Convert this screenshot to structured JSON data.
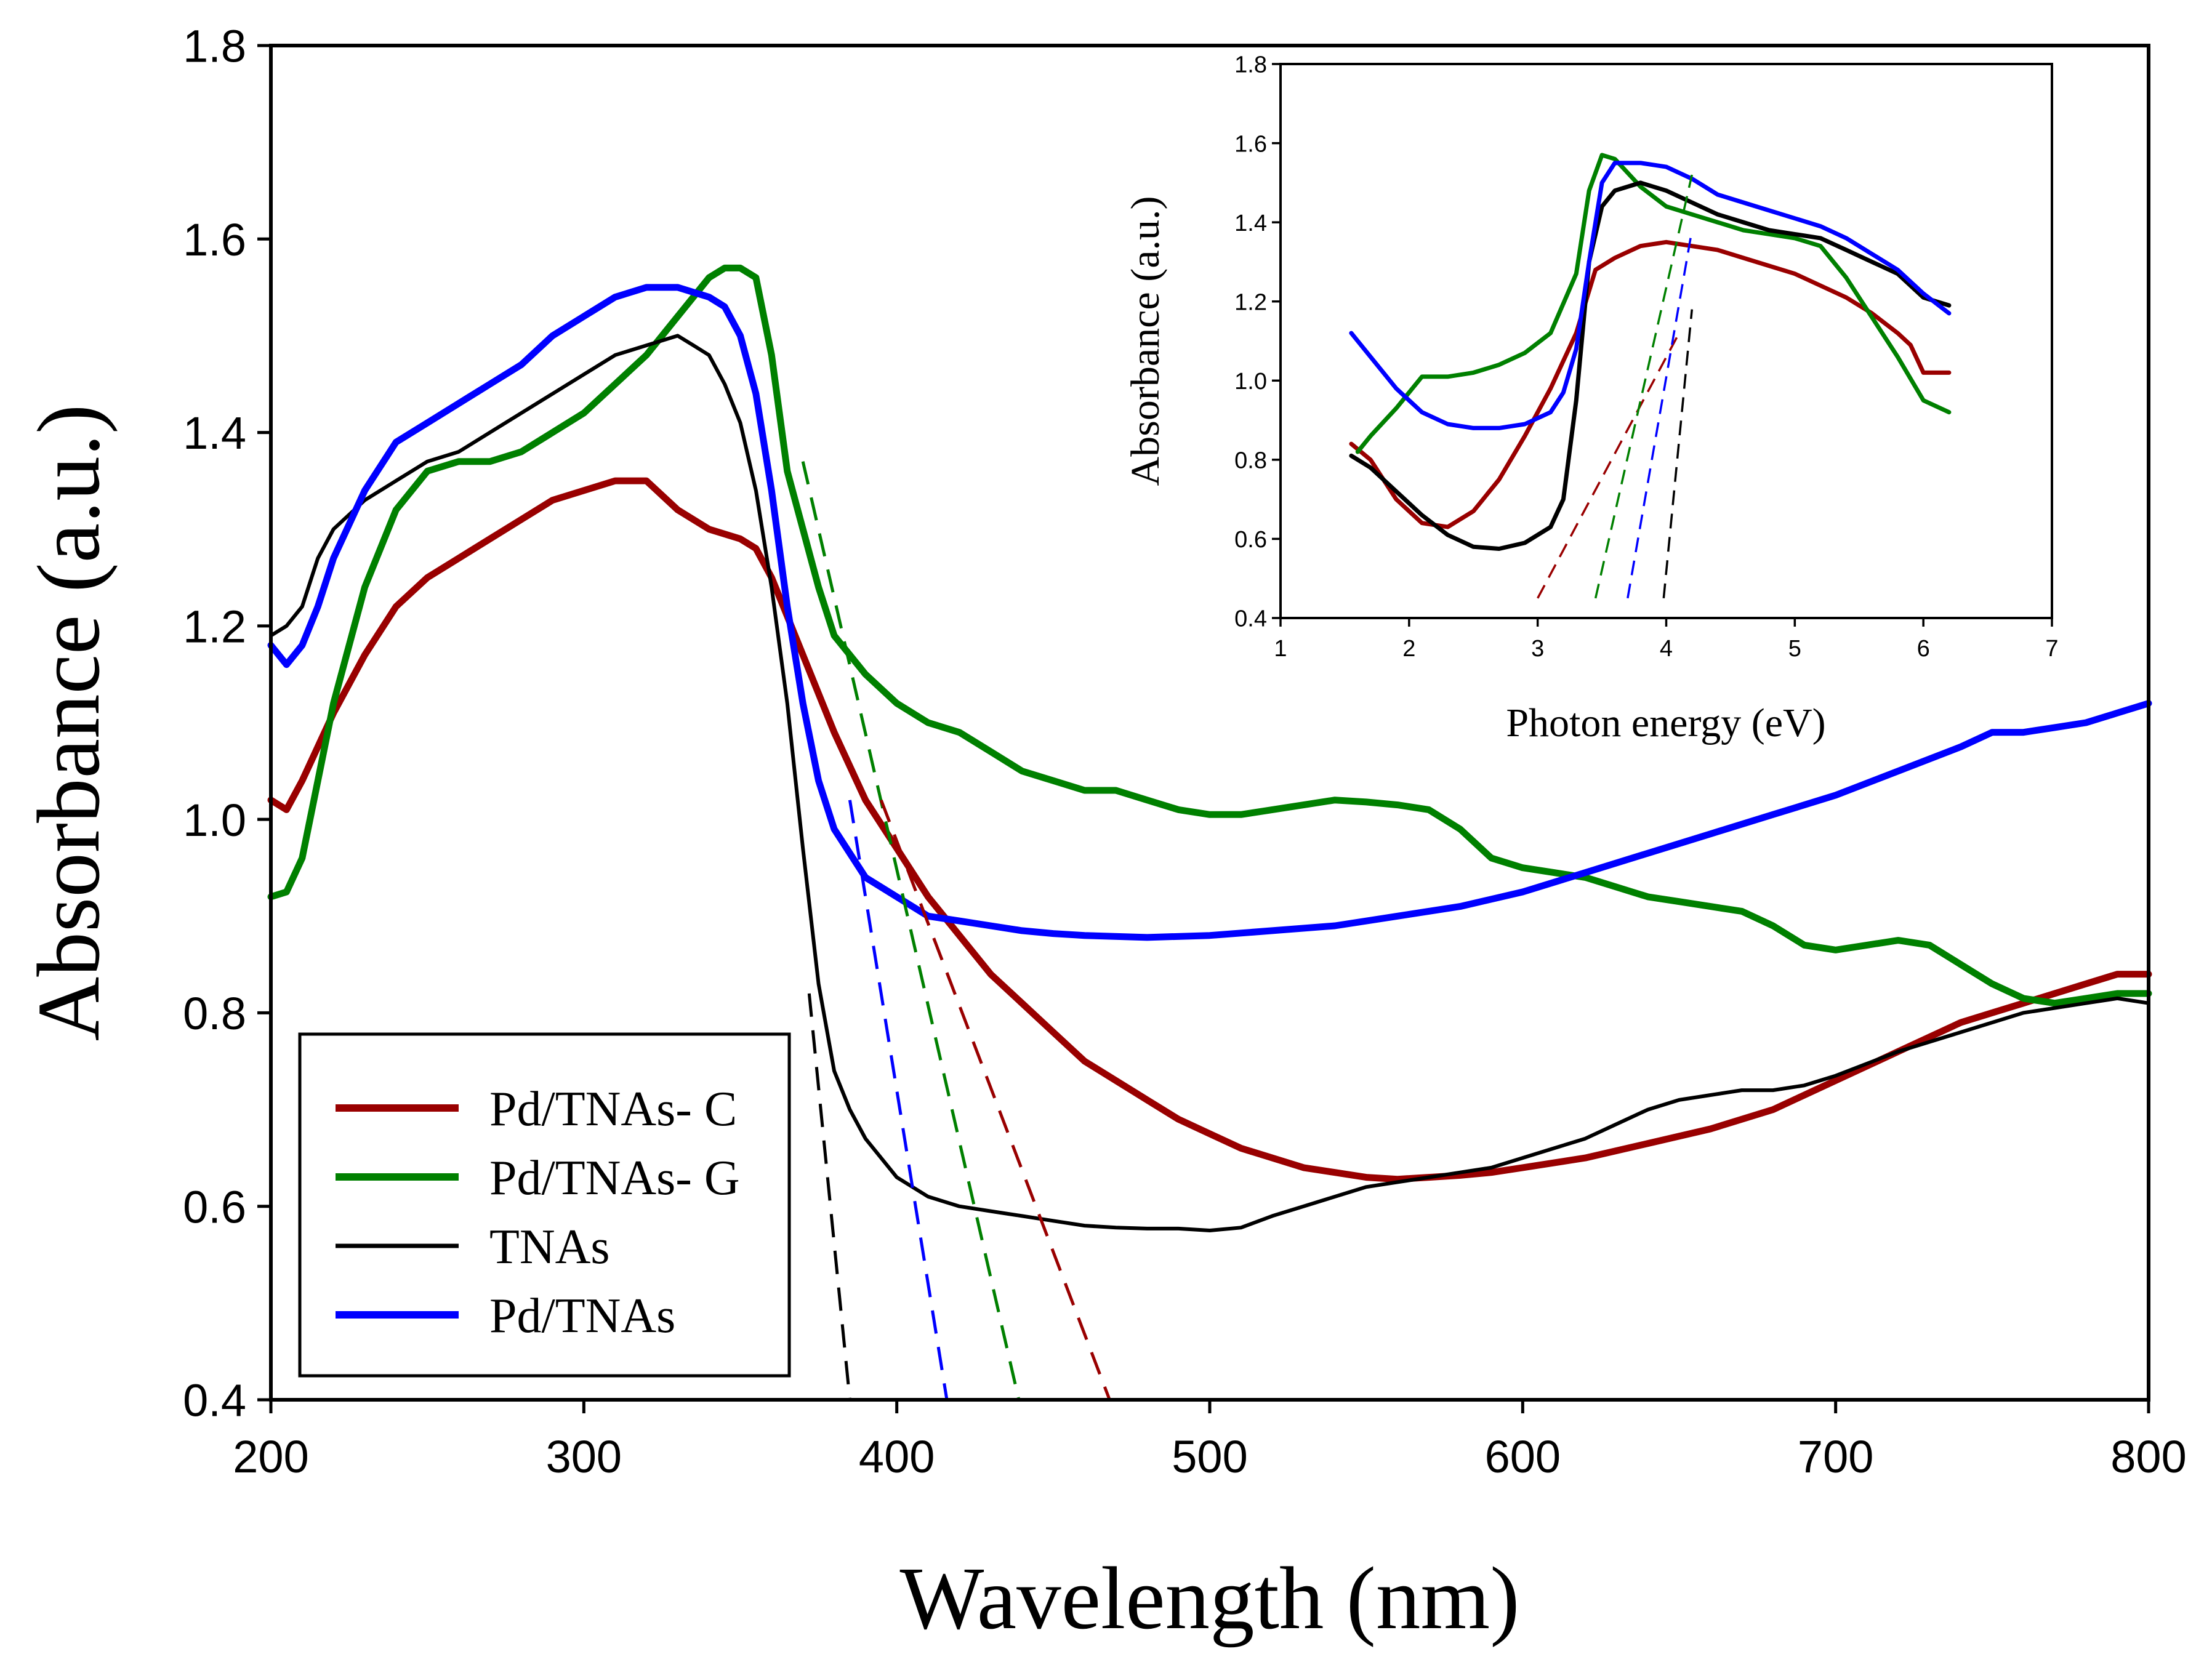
{
  "chart_data": [
    {
      "type": "line",
      "title": "",
      "xlabel": "Wavelength (nm)",
      "ylabel": "Absorbance (a.u.)",
      "xlim": [
        200,
        800
      ],
      "ylim": [
        0.4,
        1.8
      ],
      "xticks": [
        "200",
        "300",
        "400",
        "500",
        "600",
        "700",
        "800"
      ],
      "yticks": [
        "0.4",
        "0.6",
        "0.8",
        "1.0",
        "1.2",
        "1.4",
        "1.6",
        "1.8"
      ],
      "legend_position": "bottom-left",
      "series": [
        {
          "name": "Pd/TNAs- C",
          "color": "#990000",
          "x": [
            200,
            205,
            210,
            220,
            230,
            240,
            250,
            260,
            270,
            280,
            290,
            300,
            310,
            320,
            330,
            340,
            350,
            355,
            360,
            365,
            370,
            380,
            390,
            400,
            410,
            420,
            430,
            440,
            450,
            460,
            470,
            480,
            490,
            500,
            510,
            520,
            530,
            540,
            550,
            560,
            570,
            580,
            590,
            600,
            620,
            640,
            660,
            680,
            700,
            720,
            740,
            750,
            760,
            770,
            780,
            790,
            800
          ],
          "y": [
            1.02,
            1.01,
            1.04,
            1.11,
            1.17,
            1.22,
            1.25,
            1.27,
            1.29,
            1.31,
            1.33,
            1.34,
            1.35,
            1.35,
            1.32,
            1.3,
            1.29,
            1.28,
            1.25,
            1.21,
            1.17,
            1.09,
            1.02,
            0.97,
            0.92,
            0.88,
            0.84,
            0.81,
            0.78,
            0.75,
            0.73,
            0.71,
            0.69,
            0.675,
            0.66,
            0.65,
            0.64,
            0.635,
            0.63,
            0.628,
            0.63,
            0.632,
            0.635,
            0.64,
            0.65,
            0.665,
            0.68,
            0.7,
            0.73,
            0.76,
            0.79,
            0.8,
            0.81,
            0.82,
            0.83,
            0.84,
            0.84
          ]
        },
        {
          "name": "Pd/TNAs- G",
          "color": "#008000",
          "x": [
            200,
            205,
            210,
            215,
            220,
            230,
            240,
            250,
            260,
            270,
            280,
            290,
            300,
            310,
            320,
            330,
            340,
            345,
            350,
            355,
            360,
            365,
            370,
            375,
            380,
            390,
            400,
            410,
            420,
            430,
            440,
            450,
            460,
            470,
            480,
            490,
            500,
            510,
            520,
            530,
            540,
            550,
            560,
            570,
            580,
            590,
            600,
            610,
            620,
            630,
            640,
            650,
            660,
            670,
            680,
            690,
            700,
            710,
            720,
            730,
            740,
            750,
            760,
            770,
            780,
            790,
            800
          ],
          "y": [
            0.92,
            0.925,
            0.96,
            1.04,
            1.12,
            1.24,
            1.32,
            1.36,
            1.37,
            1.37,
            1.38,
            1.4,
            1.42,
            1.45,
            1.48,
            1.52,
            1.56,
            1.57,
            1.57,
            1.56,
            1.48,
            1.36,
            1.3,
            1.24,
            1.19,
            1.15,
            1.12,
            1.1,
            1.09,
            1.07,
            1.05,
            1.04,
            1.03,
            1.03,
            1.02,
            1.01,
            1.005,
            1.005,
            1.01,
            1.015,
            1.02,
            1.018,
            1.015,
            1.01,
            0.99,
            0.96,
            0.95,
            0.945,
            0.94,
            0.93,
            0.92,
            0.915,
            0.91,
            0.905,
            0.89,
            0.87,
            0.865,
            0.87,
            0.875,
            0.87,
            0.85,
            0.83,
            0.815,
            0.81,
            0.815,
            0.82,
            0.82
          ]
        },
        {
          "name": "TNAs",
          "color": "#000000",
          "x": [
            200,
            205,
            210,
            215,
            220,
            230,
            240,
            250,
            260,
            270,
            280,
            290,
            300,
            310,
            320,
            330,
            335,
            340,
            345,
            350,
            355,
            360,
            365,
            370,
            375,
            380,
            385,
            390,
            400,
            410,
            420,
            430,
            440,
            450,
            460,
            470,
            480,
            490,
            500,
            510,
            520,
            530,
            540,
            550,
            560,
            570,
            580,
            590,
            600,
            610,
            620,
            630,
            640,
            650,
            660,
            670,
            680,
            690,
            700,
            720,
            740,
            760,
            780,
            790,
            800
          ],
          "y": [
            1.19,
            1.2,
            1.22,
            1.27,
            1.3,
            1.33,
            1.35,
            1.37,
            1.38,
            1.4,
            1.42,
            1.44,
            1.46,
            1.48,
            1.49,
            1.5,
            1.49,
            1.48,
            1.45,
            1.41,
            1.34,
            1.24,
            1.12,
            0.97,
            0.83,
            0.74,
            0.7,
            0.67,
            0.63,
            0.61,
            0.6,
            0.595,
            0.59,
            0.585,
            0.58,
            0.578,
            0.577,
            0.577,
            0.575,
            0.578,
            0.59,
            0.6,
            0.61,
            0.62,
            0.625,
            0.63,
            0.635,
            0.64,
            0.65,
            0.66,
            0.67,
            0.685,
            0.7,
            0.71,
            0.715,
            0.72,
            0.72,
            0.725,
            0.735,
            0.76,
            0.78,
            0.8,
            0.81,
            0.815,
            0.81
          ]
        },
        {
          "name": "Pd/TNAs",
          "color": "#0000ff",
          "x": [
            200,
            205,
            210,
            215,
            220,
            230,
            240,
            250,
            260,
            270,
            280,
            290,
            300,
            310,
            320,
            330,
            340,
            345,
            350,
            355,
            360,
            365,
            370,
            375,
            380,
            390,
            400,
            410,
            420,
            430,
            440,
            450,
            460,
            480,
            500,
            520,
            540,
            560,
            580,
            600,
            620,
            640,
            660,
            680,
            700,
            720,
            740,
            750,
            760,
            770,
            780,
            790,
            800
          ],
          "y": [
            1.18,
            1.16,
            1.18,
            1.22,
            1.27,
            1.34,
            1.39,
            1.41,
            1.43,
            1.45,
            1.47,
            1.5,
            1.52,
            1.54,
            1.55,
            1.55,
            1.54,
            1.53,
            1.5,
            1.44,
            1.34,
            1.22,
            1.12,
            1.04,
            0.99,
            0.94,
            0.92,
            0.9,
            0.895,
            0.89,
            0.885,
            0.882,
            0.88,
            0.878,
            0.88,
            0.885,
            0.89,
            0.9,
            0.91,
            0.925,
            0.945,
            0.965,
            0.985,
            1.005,
            1.025,
            1.05,
            1.075,
            1.09,
            1.09,
            1.095,
            1.1,
            1.11,
            1.12
          ]
        }
      ],
      "tangent_lines": [
        {
          "name": "TNAs tangent",
          "color": "#000000",
          "x": [
            372,
            385
          ],
          "y": [
            0.82,
            0.4
          ]
        },
        {
          "name": "Pd/TNAs tangent",
          "color": "#0000ff",
          "x": [
            385,
            416
          ],
          "y": [
            1.02,
            0.4
          ]
        },
        {
          "name": "Pd/TNAs- G tangent",
          "color": "#008000",
          "x": [
            370,
            439
          ],
          "y": [
            1.37,
            0.4
          ]
        },
        {
          "name": "Pd/TNAs- C tangent",
          "color": "#990000",
          "x": [
            395,
            468
          ],
          "y": [
            1.02,
            0.4
          ]
        }
      ]
    },
    {
      "type": "line",
      "title": "",
      "xlabel": "Photon energy (eV)",
      "ylabel": "Absorbance (a.u.)",
      "xlim": [
        1,
        7
      ],
      "ylim": [
        0.4,
        1.8
      ],
      "xticks": [
        "1",
        "2",
        "3",
        "4",
        "5",
        "6",
        "7"
      ],
      "yticks": [
        "0.4",
        "0.6",
        "0.8",
        "1.0",
        "1.2",
        "1.4",
        "1.6",
        "1.8"
      ],
      "legend_position": "none",
      "series": [
        {
          "name": "Pd/TNAs- C",
          "color": "#990000",
          "x": [
            1.55,
            1.7,
            1.9,
            2.1,
            2.3,
            2.5,
            2.7,
            2.9,
            3.1,
            3.3,
            3.45,
            3.6,
            3.8,
            4.0,
            4.2,
            4.4,
            4.6,
            4.8,
            5.0,
            5.2,
            5.4,
            5.6,
            5.8,
            5.9,
            6.0,
            6.1,
            6.2
          ],
          "y": [
            0.84,
            0.8,
            0.7,
            0.64,
            0.63,
            0.67,
            0.75,
            0.86,
            0.98,
            1.12,
            1.28,
            1.31,
            1.34,
            1.35,
            1.34,
            1.33,
            1.31,
            1.29,
            1.27,
            1.24,
            1.21,
            1.17,
            1.12,
            1.09,
            1.02,
            1.02,
            1.02
          ]
        },
        {
          "name": "Pd/TNAs- G",
          "color": "#008000",
          "x": [
            1.6,
            1.7,
            1.9,
            2.1,
            2.3,
            2.5,
            2.7,
            2.9,
            3.1,
            3.3,
            3.4,
            3.5,
            3.6,
            3.8,
            4.0,
            4.2,
            4.4,
            4.6,
            4.8,
            5.0,
            5.2,
            5.4,
            5.6,
            5.8,
            6.0,
            6.2
          ],
          "y": [
            0.82,
            0.86,
            0.93,
            1.01,
            1.01,
            1.02,
            1.04,
            1.07,
            1.12,
            1.27,
            1.48,
            1.57,
            1.56,
            1.49,
            1.44,
            1.42,
            1.4,
            1.38,
            1.37,
            1.36,
            1.34,
            1.26,
            1.16,
            1.06,
            0.95,
            0.92
          ]
        },
        {
          "name": "TNAs",
          "color": "#000000",
          "x": [
            1.55,
            1.7,
            1.9,
            2.1,
            2.3,
            2.5,
            2.7,
            2.9,
            3.1,
            3.2,
            3.3,
            3.4,
            3.5,
            3.6,
            3.8,
            4.0,
            4.2,
            4.4,
            4.6,
            4.8,
            5.0,
            5.2,
            5.4,
            5.6,
            5.8,
            6.0,
            6.2
          ],
          "y": [
            0.81,
            0.78,
            0.72,
            0.66,
            0.61,
            0.58,
            0.575,
            0.59,
            0.63,
            0.7,
            0.95,
            1.3,
            1.44,
            1.48,
            1.5,
            1.48,
            1.45,
            1.42,
            1.4,
            1.38,
            1.37,
            1.36,
            1.33,
            1.3,
            1.27,
            1.21,
            1.19
          ]
        },
        {
          "name": "Pd/TNAs",
          "color": "#0000ff",
          "x": [
            1.55,
            1.7,
            1.9,
            2.1,
            2.3,
            2.5,
            2.7,
            2.9,
            3.1,
            3.2,
            3.3,
            3.4,
            3.5,
            3.6,
            3.8,
            4.0,
            4.2,
            4.4,
            4.6,
            4.8,
            5.0,
            5.2,
            5.4,
            5.6,
            5.8,
            6.0,
            6.2
          ],
          "y": [
            1.12,
            1.06,
            0.98,
            0.92,
            0.89,
            0.88,
            0.88,
            0.89,
            0.92,
            0.97,
            1.08,
            1.3,
            1.5,
            1.55,
            1.55,
            1.54,
            1.51,
            1.47,
            1.45,
            1.43,
            1.41,
            1.39,
            1.36,
            1.32,
            1.28,
            1.22,
            1.17
          ]
        }
      ],
      "tangent_lines": [
        {
          "name": "Pd/TNAs- C tangent",
          "color": "#990000",
          "x": [
            3.0,
            4.1
          ],
          "y": [
            0.45,
            1.12
          ]
        },
        {
          "name": "Pd/TNAs- G tangent",
          "color": "#008000",
          "x": [
            3.45,
            4.2
          ],
          "y": [
            0.45,
            1.52
          ]
        },
        {
          "name": "Pd/TNAs tangent",
          "color": "#0000ff",
          "x": [
            3.7,
            4.2
          ],
          "y": [
            0.45,
            1.38
          ]
        },
        {
          "name": "TNAs tangent",
          "color": "#000000",
          "x": [
            3.98,
            4.2
          ],
          "y": [
            0.45,
            1.18
          ]
        }
      ]
    }
  ]
}
